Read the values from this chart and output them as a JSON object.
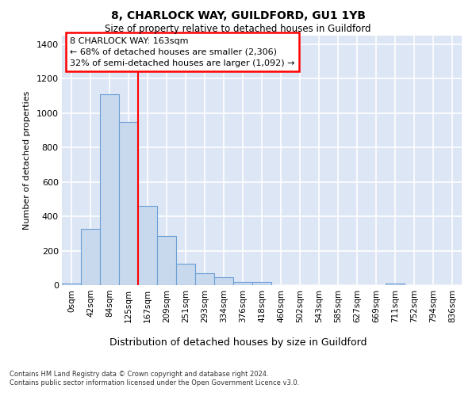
{
  "title1": "8, CHARLOCK WAY, GUILDFORD, GU1 1YB",
  "title2": "Size of property relative to detached houses in Guildford",
  "xlabel": "Distribution of detached houses by size in Guildford",
  "ylabel": "Number of detached properties",
  "categories": [
    "0sqm",
    "42sqm",
    "84sqm",
    "125sqm",
    "167sqm",
    "209sqm",
    "251sqm",
    "293sqm",
    "334sqm",
    "376sqm",
    "418sqm",
    "460sqm",
    "502sqm",
    "543sqm",
    "585sqm",
    "627sqm",
    "669sqm",
    "711sqm",
    "752sqm",
    "794sqm",
    "836sqm"
  ],
  "values": [
    10,
    325,
    1110,
    950,
    460,
    285,
    125,
    68,
    45,
    20,
    20,
    0,
    0,
    0,
    0,
    0,
    0,
    7,
    0,
    0,
    0
  ],
  "bar_color": "#c8d9ee",
  "bar_edge_color": "#6b9fd4",
  "bg_color": "#dde6f5",
  "annotation_line1": "8 CHARLOCK WAY: 163sqm",
  "annotation_line2": "← 68% of detached houses are smaller (2,306)",
  "annotation_line3": "32% of semi-detached houses are larger (1,092) →",
  "vline_index": 4,
  "ylim": [
    0,
    1450
  ],
  "yticks": [
    0,
    200,
    400,
    600,
    800,
    1000,
    1200,
    1400
  ],
  "footer1": "Contains HM Land Registry data © Crown copyright and database right 2024.",
  "footer2": "Contains public sector information licensed under the Open Government Licence v3.0."
}
